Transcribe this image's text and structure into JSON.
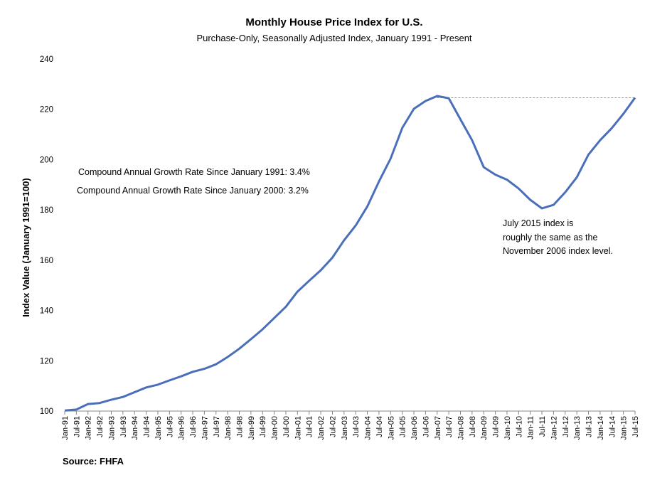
{
  "chart_data": {
    "type": "line",
    "title": "Monthly House Price Index for U.S.",
    "subtitle": "Purchase-Only, Seasonally Adjusted Index, January 1991 - Present",
    "xlabel": "",
    "ylabel": "Index Value (January 1991=100)",
    "ylim": [
      100,
      240
    ],
    "yticks": [
      100,
      120,
      140,
      160,
      180,
      200,
      220,
      240
    ],
    "grid": false,
    "legend": "none",
    "x": [
      "Jan-91",
      "Jul-91",
      "Jan-92",
      "Jul-92",
      "Jan-93",
      "Jul-93",
      "Jan-94",
      "Jul-94",
      "Jan-95",
      "Jul-95",
      "Jan-96",
      "Jul-96",
      "Jan-97",
      "Jul-97",
      "Jan-98",
      "Jul-98",
      "Jan-99",
      "Jul-99",
      "Jan-00",
      "Jul-00",
      "Jan-01",
      "Jul-01",
      "Jan-02",
      "Jul-02",
      "Jan-03",
      "Jul-03",
      "Jan-04",
      "Jul-04",
      "Jan-05",
      "Jul-05",
      "Jan-06",
      "Jul-06",
      "Jan-07",
      "Jul-07",
      "Jan-08",
      "Jul-08",
      "Jan-09",
      "Jul-09",
      "Jan-10",
      "Jul-10",
      "Jan-11",
      "Jul-11",
      "Jan-12",
      "Jul-12",
      "Jan-13",
      "Jul-13",
      "Jan-14",
      "Jul-14",
      "Jan-15",
      "Jul-15"
    ],
    "series": [
      {
        "color": "#4a6fba",
        "values": [
          100.2,
          100.6,
          102.8,
          103.2,
          104.5,
          105.6,
          107.5,
          109.4,
          110.5,
          112.2,
          113.8,
          115.6,
          116.8,
          118.6,
          121.5,
          124.8,
          128.6,
          132.5,
          137,
          141.5,
          147.5,
          151.8,
          156,
          161,
          167.9,
          173.8,
          181.4,
          191.3,
          200.4,
          212.6,
          220.2,
          223.3,
          225.3,
          224.4,
          216,
          207.7,
          197,
          194,
          192,
          188.5,
          184,
          180.6,
          182,
          187,
          193,
          202,
          207.7,
          212.5,
          218.2,
          224.6
        ]
      }
    ],
    "reference_line": {
      "value": 224.6,
      "from": "Nov-06",
      "to": "Jul-15",
      "color": "#e07070"
    },
    "annotations": [
      "Compound Annual Growth Rate Since January 1991:  3.4%",
      "Compound Annual Growth Rate Since January 2000:  3.2%",
      "July 2015 index is",
      "roughly the same as the",
      "November 2006 index level."
    ],
    "source": "Source: FHFA"
  }
}
